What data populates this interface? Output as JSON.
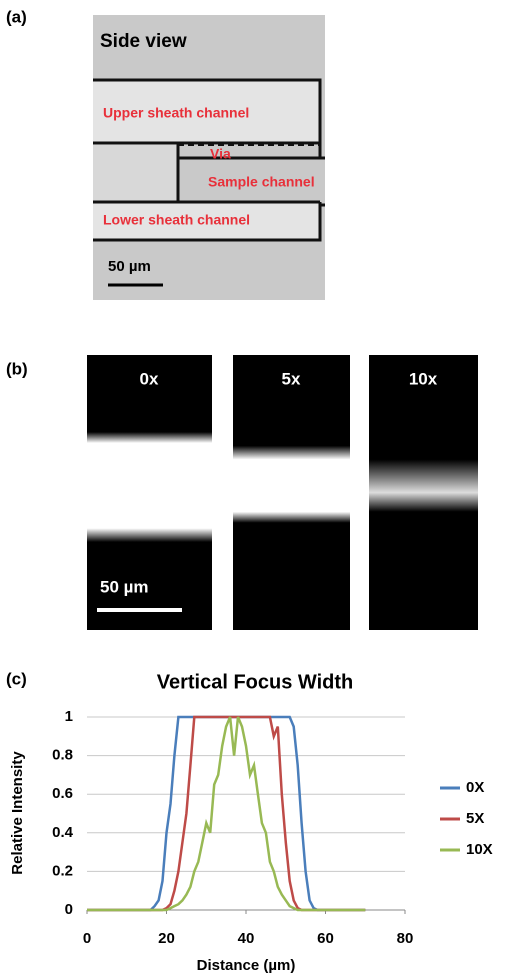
{
  "panel_a": {
    "label": "(a)",
    "title": "Side view",
    "upper": "Upper sheath channel",
    "via": "Via",
    "sample": "Sample channel",
    "lower": "Lower sheath channel",
    "scale": "50 µm"
  },
  "panel_b": {
    "label": "(b)",
    "frames": [
      "0x",
      "5x",
      "10x"
    ],
    "scale": "50 µm"
  },
  "panel_c": {
    "label": "(c)"
  },
  "chart_data": {
    "type": "line",
    "title": "Vertical Focus Width",
    "x_label": "Distance (µm)",
    "y_label": "Relative Intensity",
    "x": [
      0,
      5,
      10,
      15,
      16,
      17,
      18,
      19,
      20,
      21,
      22,
      23,
      24,
      25,
      26,
      27,
      28,
      29,
      30,
      31,
      32,
      33,
      34,
      35,
      36,
      37,
      38,
      39,
      40,
      41,
      42,
      43,
      44,
      45,
      46,
      47,
      48,
      49,
      50,
      51,
      52,
      53,
      54,
      55,
      56,
      57,
      58,
      60,
      65,
      70
    ],
    "series": [
      {
        "name": "0X",
        "color": "#4a7ebb",
        "values": [
          0,
          0,
          0,
          0,
          0,
          0.02,
          0.05,
          0.15,
          0.4,
          0.55,
          0.8,
          1,
          1,
          1,
          1,
          1,
          1,
          1,
          1,
          1,
          1,
          1,
          1,
          1,
          1,
          1,
          1,
          1,
          1,
          1,
          1,
          1,
          1,
          1,
          1,
          1,
          1,
          1,
          1,
          1,
          0.95,
          0.75,
          0.45,
          0.2,
          0.05,
          0.01,
          0,
          0,
          0,
          0
        ]
      },
      {
        "name": "5X",
        "color": "#be4b48",
        "values": [
          0,
          0,
          0,
          0,
          0,
          0,
          0,
          0,
          0.01,
          0.03,
          0.1,
          0.2,
          0.35,
          0.5,
          0.75,
          1,
          1,
          1,
          1,
          1,
          1,
          1,
          1,
          1,
          1,
          1,
          1,
          1,
          1,
          1,
          1,
          1,
          1,
          1,
          1,
          0.9,
          0.95,
          0.6,
          0.35,
          0.15,
          0.05,
          0.01,
          0,
          0,
          0,
          0,
          0,
          0,
          0,
          0
        ]
      },
      {
        "name": "10X",
        "color": "#98b954",
        "values": [
          0,
          0,
          0,
          0,
          0,
          0,
          0,
          0,
          0,
          0.01,
          0.02,
          0.03,
          0.05,
          0.08,
          0.12,
          0.2,
          0.25,
          0.35,
          0.45,
          0.4,
          0.65,
          0.7,
          0.85,
          0.95,
          1,
          0.8,
          1,
          0.95,
          0.85,
          0.7,
          0.75,
          0.6,
          0.45,
          0.4,
          0.25,
          0.2,
          0.12,
          0.08,
          0.05,
          0.02,
          0.01,
          0,
          0,
          0,
          0,
          0,
          0,
          0,
          0,
          0
        ]
      }
    ],
    "xlim": [
      0,
      80
    ],
    "xticks": [
      0,
      20,
      40,
      60,
      80
    ],
    "ylim": [
      0,
      1
    ],
    "yticks": [
      0,
      0.2,
      0.4,
      0.6,
      0.8,
      1
    ],
    "grid": true,
    "legend": "right"
  }
}
